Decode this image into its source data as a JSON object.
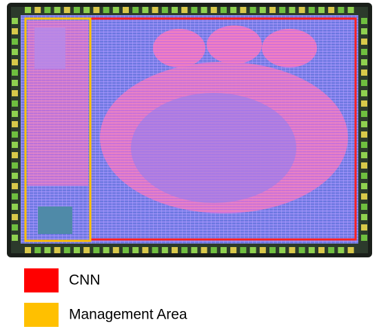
{
  "legend": [
    {
      "label": "CNN",
      "color": "#ff0000"
    },
    {
      "label": "Management Area",
      "color": "#ffc000"
    }
  ]
}
